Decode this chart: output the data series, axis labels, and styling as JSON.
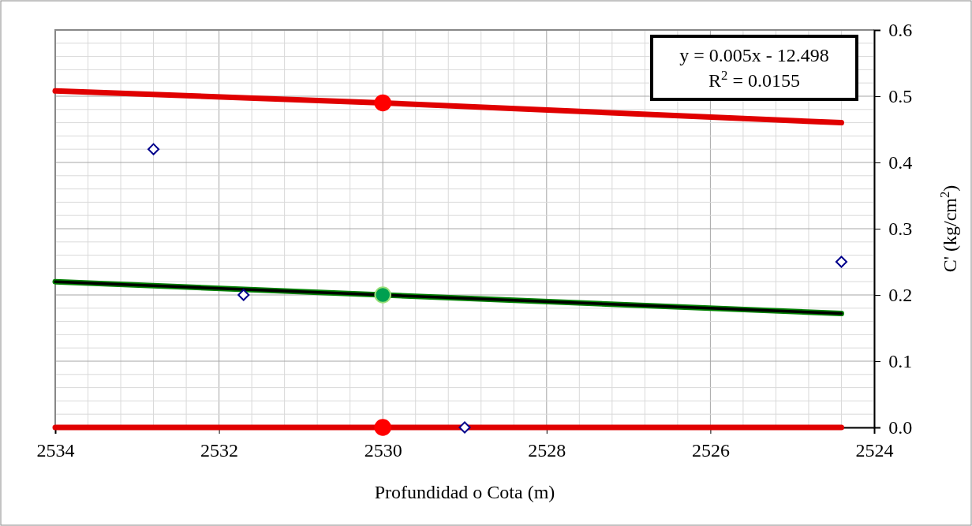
{
  "chart_data": {
    "type": "scatter",
    "xlabel": "Profundidad o Cota (m)",
    "ylabel": "C'  (kg/cm$^{2}$)",
    "xlim": [
      2534,
      2524
    ],
    "xticks": [
      2534,
      2532,
      2530,
      2528,
      2526,
      2524
    ],
    "ylim": [
      0,
      0.6
    ],
    "yticks": [
      {
        "value": 0,
        "label": "0.0"
      },
      0.1,
      0.2,
      0.3,
      0.4,
      0.5,
      0.6
    ],
    "grid": true,
    "annotations": [
      "y = 0.005x - 12.498",
      "R$^{2}$ = 0.0155"
    ],
    "series": [
      {
        "type": "line",
        "color": "#e00000",
        "x": [
          2534,
          2530,
          2524.4
        ],
        "values": [
          0.508,
          0.49,
          0.46
        ],
        "line_style": "solid"
      },
      {
        "type": "line",
        "color": "#e00000",
        "x": [
          2534,
          2530,
          2524.4
        ],
        "values": [
          0,
          0,
          0
        ],
        "line_style": "solid"
      },
      {
        "type": "line",
        "color": "#008000",
        "x": [
          2534,
          2530,
          2524.4
        ],
        "values": [
          0.22,
          0.2,
          0.172
        ],
        "line_style": "solid"
      },
      {
        "type": "line",
        "color": "#000000",
        "x": [
          2534,
          2524.4
        ],
        "values": [
          0.22,
          0.172
        ],
        "line_style": "solid"
      },
      {
        "type": "scatter",
        "color": "#ff0000",
        "marker": "circle",
        "x": [
          2530,
          2530
        ],
        "values": [
          0.49,
          0
        ]
      },
      {
        "type": "scatter",
        "color": "#00a050",
        "marker": "circle",
        "x": [
          2530
        ],
        "values": [
          0.2
        ]
      },
      {
        "type": "scatter",
        "color": "#00008b",
        "marker": "diamond",
        "x": [
          2532.8,
          2531.7,
          2529,
          2524.4
        ],
        "values": [
          0.42,
          0.2,
          0,
          0.25
        ]
      }
    ]
  }
}
